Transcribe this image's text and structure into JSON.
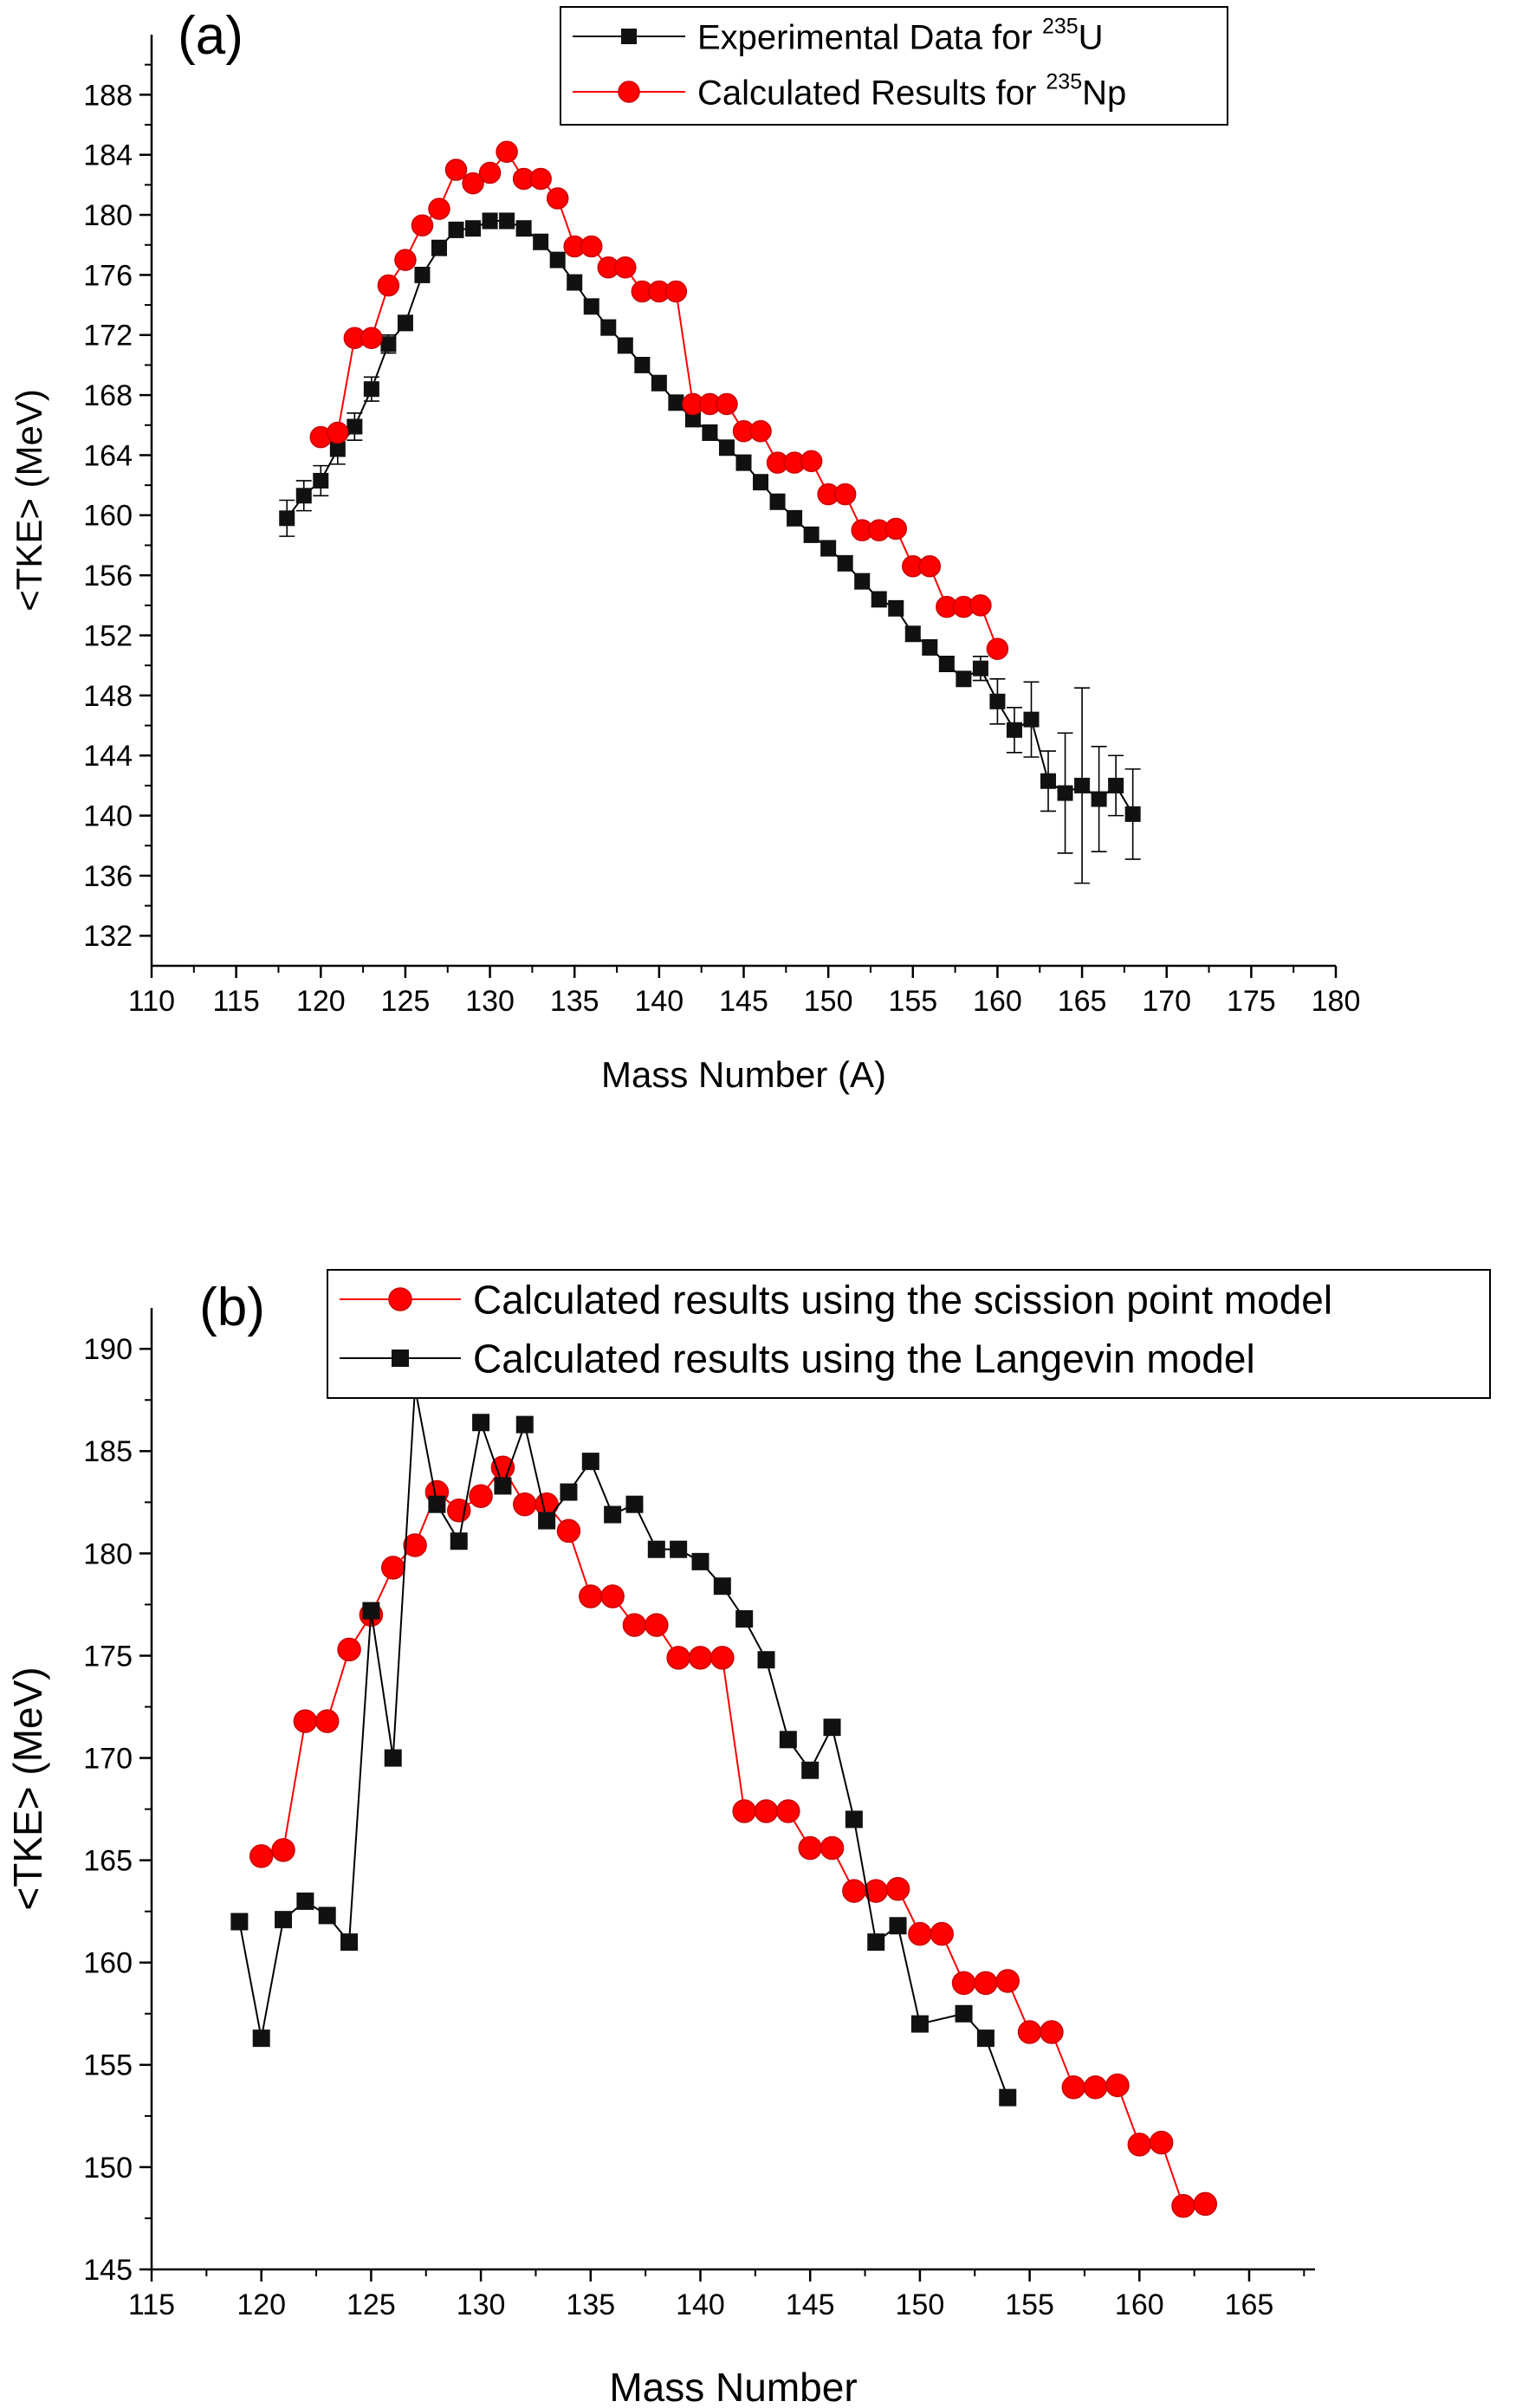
{
  "colors": {
    "black_series": "#000000",
    "red_series": "#ff0000",
    "red_edge": "#cc0000",
    "axis": "#000000"
  },
  "chart_data": [
    {
      "panel_label": "(a)",
      "type": "line",
      "xlabel": "Mass Number (A)",
      "ylabel": "<TKE> (MeV)",
      "xlim": [
        110,
        180
      ],
      "ylim": [
        130,
        192
      ],
      "x_ticks": [
        "110",
        "115",
        "120",
        "125",
        "130",
        "135",
        "140",
        "145",
        "150",
        "155",
        "160",
        "165",
        "170",
        "175",
        "180"
      ],
      "y_ticks": [
        "132",
        "136",
        "140",
        "144",
        "148",
        "152",
        "156",
        "160",
        "164",
        "168",
        "172",
        "176",
        "180",
        "184",
        "188"
      ],
      "legend": [
        {
          "prefix": "Experimental Data for  ",
          "sup": "235",
          "suffix": "U"
        },
        {
          "prefix": "Calculated Results for  ",
          "sup": "235",
          "suffix": "Np"
        }
      ],
      "series": [
        {
          "name": "Experimental Data for 235U",
          "marker": "square",
          "color": "#000000",
          "x": [
            118,
            119,
            120,
            121,
            122,
            123,
            124,
            125,
            126,
            127,
            128,
            129,
            130,
            131,
            132,
            133,
            134,
            135,
            136,
            137,
            138,
            139,
            140,
            141,
            142,
            143,
            144,
            145,
            146,
            147,
            148,
            149,
            150,
            151,
            152,
            153,
            154,
            155,
            156,
            157,
            158,
            159,
            160,
            161,
            162,
            163,
            164,
            165,
            166,
            167,
            168
          ],
          "y": [
            159.8,
            161.3,
            162.3,
            164.4,
            165.9,
            168.4,
            171.4,
            172.8,
            176.0,
            177.8,
            179.0,
            179.1,
            179.6,
            179.6,
            179.1,
            178.2,
            177.0,
            175.5,
            173.9,
            172.5,
            171.3,
            170.0,
            168.8,
            167.5,
            166.4,
            165.5,
            164.5,
            163.5,
            162.2,
            160.9,
            159.8,
            158.7,
            157.8,
            156.8,
            155.6,
            154.4,
            153.8,
            152.1,
            151.2,
            150.1,
            149.1,
            149.8,
            147.6,
            145.7,
            146.4,
            142.3,
            141.5,
            142.0,
            141.1,
            142.0,
            140.1
          ],
          "err": [
            1.2,
            1.0,
            1.0,
            1.0,
            0.9,
            0.8,
            0.6,
            0.5,
            0.5,
            0.5,
            0.5,
            0.5,
            0.5,
            0.5,
            0.5,
            0.5,
            0.5,
            0.5,
            0.5,
            0.5,
            0.5,
            0.5,
            0.5,
            0.5,
            0.5,
            0.5,
            0.5,
            0.5,
            0.5,
            0.5,
            0.5,
            0.5,
            0.5,
            0.5,
            0.5,
            0.5,
            0.5,
            0.5,
            0.5,
            0.5,
            0.5,
            0.8,
            1.5,
            1.5,
            2.5,
            2.0,
            4.0,
            6.5,
            3.5,
            2.0,
            3.0
          ]
        },
        {
          "name": "Calculated Results for 235Np",
          "marker": "circle",
          "color": "#ff0000",
          "x": [
            120,
            121,
            122,
            123,
            124,
            125,
            126,
            127,
            128,
            129,
            130,
            131,
            132,
            133,
            134,
            135,
            136,
            137,
            138,
            139,
            140,
            141,
            142,
            143,
            144,
            145,
            146,
            147,
            148,
            149,
            150,
            151,
            152,
            153,
            154,
            155,
            156,
            157,
            158,
            159,
            160
          ],
          "y": [
            165.2,
            165.5,
            171.8,
            171.8,
            175.3,
            177.0,
            179.3,
            180.4,
            183.0,
            182.1,
            182.8,
            184.2,
            182.4,
            182.4,
            181.1,
            177.9,
            177.9,
            176.5,
            176.5,
            174.9,
            174.9,
            174.9,
            167.4,
            167.4,
            167.4,
            165.6,
            165.6,
            163.5,
            163.5,
            163.6,
            161.4,
            161.4,
            159.0,
            159.0,
            159.1,
            156.6,
            156.6,
            153.9,
            153.9,
            154.0,
            151.1
          ]
        }
      ]
    },
    {
      "panel_label": "(b)",
      "type": "line",
      "xlabel": "Mass Number",
      "ylabel": "<TKE> (MeV)",
      "xlim": [
        115,
        168
      ],
      "ylim": [
        145,
        192
      ],
      "x_ticks": [
        "115",
        "120",
        "125",
        "130",
        "135",
        "140",
        "145",
        "150",
        "155",
        "160",
        "165"
      ],
      "y_ticks": [
        "145",
        "150",
        "155",
        "160",
        "165",
        "170",
        "175",
        "180",
        "185",
        "190"
      ],
      "legend": [
        {
          "prefix": "Calculated results using the scission point model",
          "sup": "",
          "suffix": ""
        },
        {
          "prefix": "Calculated results using the Langevin model",
          "sup": "",
          "suffix": ""
        }
      ],
      "series": [
        {
          "name": "Calculated results using the scission point model",
          "marker": "circle",
          "color": "#ff0000",
          "x": [
            120,
            121,
            122,
            123,
            124,
            125,
            126,
            127,
            128,
            129,
            130,
            131,
            132,
            133,
            134,
            135,
            136,
            137,
            138,
            139,
            140,
            141,
            142,
            143,
            144,
            145,
            146,
            147,
            148,
            149,
            150,
            151,
            152,
            153,
            154,
            155,
            156,
            157,
            158,
            159,
            160,
            161,
            162,
            163
          ],
          "y": [
            165.2,
            165.5,
            171.8,
            171.8,
            175.3,
            177.0,
            179.3,
            180.4,
            183.0,
            182.1,
            182.8,
            184.2,
            182.4,
            182.4,
            181.1,
            177.9,
            177.9,
            176.5,
            176.5,
            174.9,
            174.9,
            174.9,
            167.4,
            167.4,
            167.4,
            165.6,
            165.6,
            163.5,
            163.5,
            163.6,
            161.4,
            161.4,
            159.0,
            159.0,
            159.1,
            156.6,
            156.6,
            153.9,
            153.9,
            154.0,
            151.1,
            151.2,
            148.1,
            148.2
          ]
        },
        {
          "name": "Calculated results using the Langevin model",
          "marker": "square",
          "color": "#000000",
          "x": [
            119,
            120,
            121,
            122,
            123,
            124,
            125,
            126,
            127,
            128,
            129,
            130,
            131,
            132,
            133,
            134,
            135,
            136,
            137,
            138,
            139,
            140,
            141,
            142,
            143,
            144,
            145,
            146,
            147,
            148,
            149,
            150,
            152,
            153,
            154
          ],
          "y": [
            162.0,
            156.3,
            162.1,
            163.0,
            162.3,
            161.0,
            177.2,
            170.0,
            188.1,
            182.4,
            180.6,
            186.4,
            183.3,
            186.3,
            181.6,
            183.0,
            184.5,
            181.9,
            182.4,
            180.2,
            180.2,
            179.6,
            178.4,
            176.8,
            174.8,
            170.9,
            169.4,
            171.5,
            167.0,
            161.0,
            161.8,
            157.0,
            157.5,
            156.3,
            153.4
          ]
        }
      ]
    }
  ]
}
